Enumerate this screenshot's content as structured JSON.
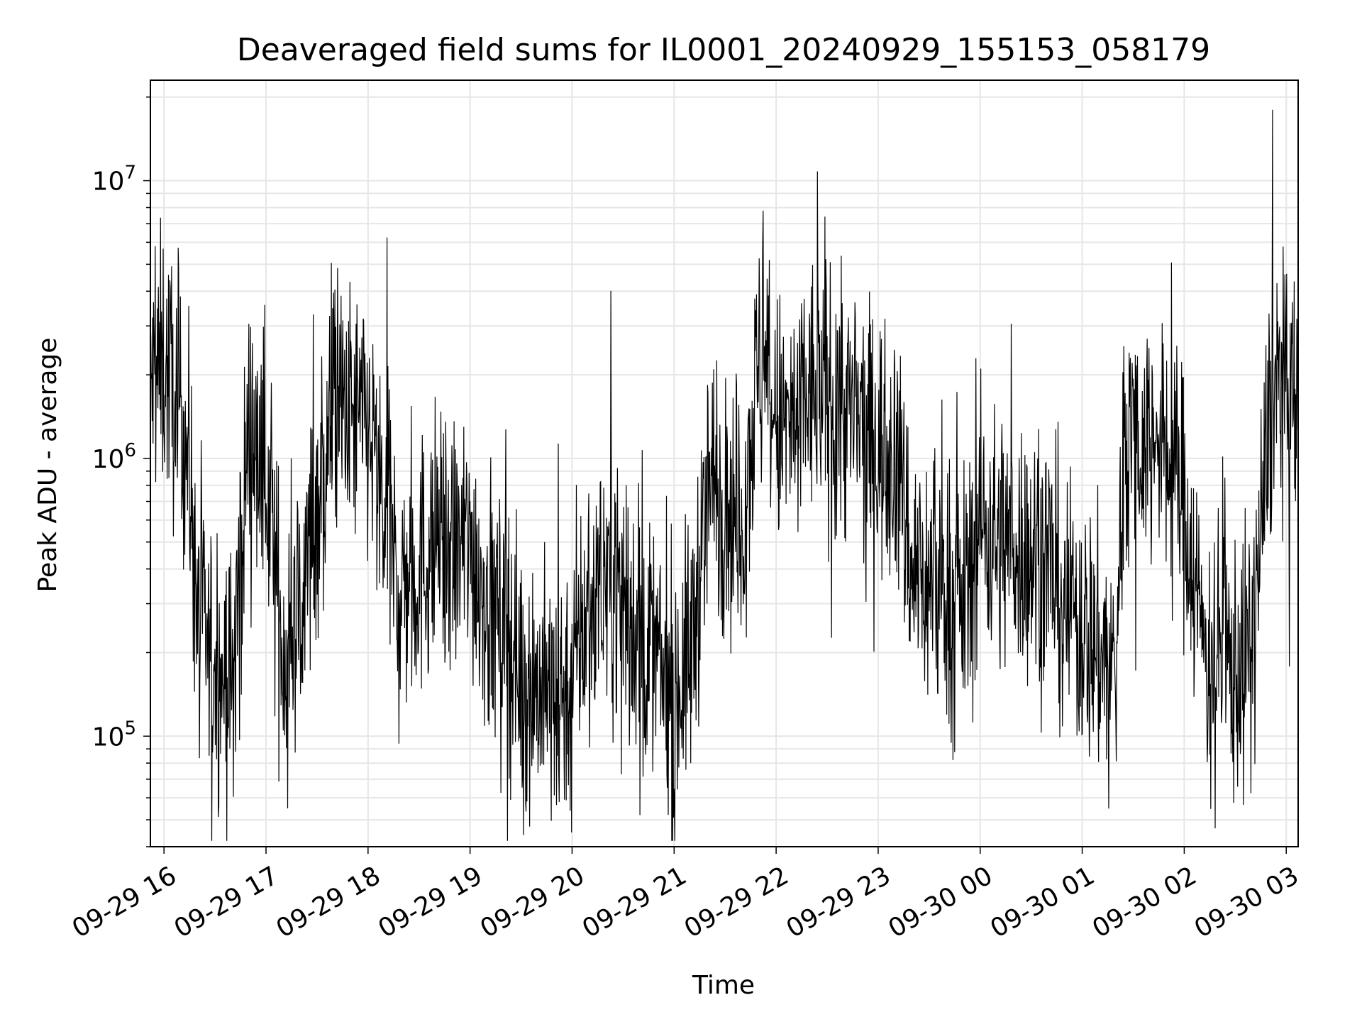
{
  "chart_data": {
    "type": "line",
    "title": "Deaveraged field sums for IL0001_20240929_155153_058179",
    "xlabel": "Time",
    "ylabel": "Peak ADU - average",
    "yscale": "log",
    "ylim": [
      40000,
      23000000
    ],
    "xlim": [
      "2024-09-29 15:52",
      "2024-09-30 03:07"
    ],
    "grid": true,
    "series_color": "#000000",
    "grid_color": "#e6e6e6",
    "x_ticks": [
      "09-29 16",
      "09-29 17",
      "09-29 18",
      "09-29 19",
      "09-29 20",
      "09-29 21",
      "09-29 22",
      "09-29 23",
      "09-30 00",
      "09-30 01",
      "09-30 02",
      "09-30 03"
    ],
    "y_ticks": [
      {
        "base": "10",
        "exp": "5",
        "value": 100000
      },
      {
        "base": "10",
        "exp": "6",
        "value": 1000000
      },
      {
        "base": "10",
        "exp": "7",
        "value": 10000000
      }
    ],
    "series": [
      {
        "x": [
          "2024-09-29 15:52",
          "2024-09-29 16:00",
          "2024-09-29 16:10",
          "2024-09-29 16:15",
          "2024-09-29 16:20",
          "2024-09-29 16:30",
          "2024-09-29 16:40",
          "2024-09-29 16:50",
          "2024-09-29 17:00",
          "2024-09-29 17:10",
          "2024-09-29 17:20",
          "2024-09-29 17:30",
          "2024-09-29 17:40",
          "2024-09-29 17:50",
          "2024-09-29 18:00",
          "2024-09-29 18:10",
          "2024-09-29 18:20",
          "2024-09-29 18:30",
          "2024-09-29 18:40",
          "2024-09-29 18:50",
          "2024-09-29 19:00",
          "2024-09-29 19:10",
          "2024-09-29 19:20",
          "2024-09-29 19:30",
          "2024-09-29 19:40",
          "2024-09-29 19:50",
          "2024-09-29 20:00",
          "2024-09-29 20:10",
          "2024-09-29 20:20",
          "2024-09-29 20:30",
          "2024-09-29 20:40",
          "2024-09-29 20:50",
          "2024-09-29 21:00",
          "2024-09-29 21:10",
          "2024-09-29 21:20",
          "2024-09-29 21:30",
          "2024-09-29 21:40",
          "2024-09-29 21:50",
          "2024-09-29 22:00",
          "2024-09-29 22:10",
          "2024-09-29 22:20",
          "2024-09-29 22:30",
          "2024-09-29 22:40",
          "2024-09-29 22:50",
          "2024-09-29 23:00",
          "2024-09-29 23:10",
          "2024-09-29 23:20",
          "2024-09-29 23:30",
          "2024-09-29 23:40",
          "2024-09-29 23:50",
          "2024-09-30 00:00",
          "2024-09-30 00:10",
          "2024-09-30 00:20",
          "2024-09-30 00:30",
          "2024-09-30 00:40",
          "2024-09-30 00:50",
          "2024-09-30 01:00",
          "2024-09-30 01:10",
          "2024-09-30 01:20",
          "2024-09-30 01:25",
          "2024-09-30 01:30",
          "2024-09-30 01:40",
          "2024-09-30 01:50",
          "2024-09-30 02:00",
          "2024-09-30 02:10",
          "2024-09-30 02:20",
          "2024-09-30 02:30",
          "2024-09-30 02:40",
          "2024-09-30 02:50",
          "2024-09-30 02:55",
          "2024-09-30 03:00",
          "2024-09-30 03:07"
        ],
        "y": [
          1800000,
          2200000,
          1500000,
          900000,
          250000,
          180000,
          150000,
          1300000,
          900000,
          200000,
          300000,
          700000,
          1500000,
          1400000,
          1300000,
          600000,
          350000,
          400000,
          500000,
          450000,
          500000,
          300000,
          250000,
          170000,
          150000,
          130000,
          170000,
          300000,
          400000,
          350000,
          250000,
          180000,
          140000,
          200000,
          800000,
          700000,
          600000,
          2200000,
          1300000,
          1300000,
          1700000,
          1800000,
          1500000,
          1300000,
          1100000,
          1100000,
          400000,
          350000,
          350000,
          300000,
          600000,
          500000,
          500000,
          450000,
          450000,
          300000,
          250000,
          200000,
          180000,
          1500000,
          1200000,
          1200000,
          1000000,
          700000,
          250000,
          200000,
          170000,
          200000,
          1500000,
          2000000,
          1600000,
          1500000
        ]
      }
    ],
    "annotations": [
      {
        "x": "2024-09-30 02:52",
        "y": 18000000,
        "label": ""
      },
      {
        "x": "2024-09-29 20:40",
        "y": 52000,
        "label": ""
      }
    ]
  }
}
